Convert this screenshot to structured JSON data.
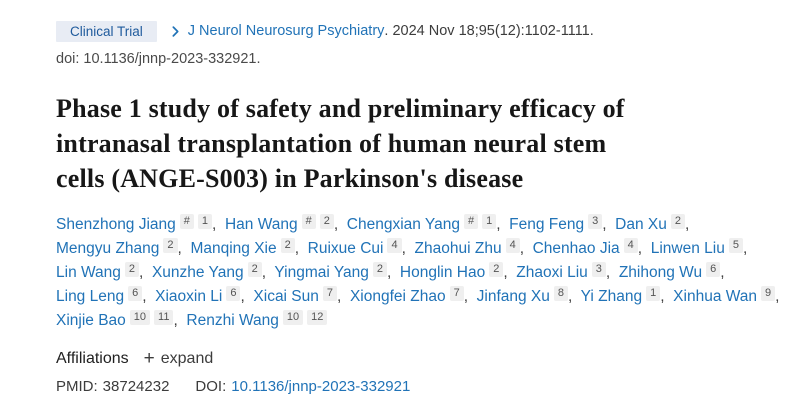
{
  "header": {
    "badge_label": "Clinical Trial",
    "journal_link": "J Neurol Neurosurg Psychiatry",
    "citation_rest": ". 2024 Nov 18;95(12):1102-1111.",
    "doi_line": "doi: 10.1136/jnnp-2023-332921."
  },
  "title_lines": [
    "Phase 1 study of safety and preliminary efficacy of",
    "intranasal transplantation of human neural stem",
    "cells (ANGE-S003) in Parkinson's disease"
  ],
  "title_full": "Phase 1 study of safety and preliminary efficacy of intranasal transplantation of human neural stem cells (ANGE-S003) in Parkinson's disease",
  "authors_lines": [
    [
      {
        "name": "Shenzhong Jiang",
        "sups": [
          "#",
          "1"
        ]
      },
      {
        "name": "Han Wang",
        "sups": [
          "#",
          "2"
        ]
      },
      {
        "name": "Chengxian Yang",
        "sups": [
          "#",
          "1"
        ]
      },
      {
        "name": "Feng Feng",
        "sups": [
          "3"
        ]
      },
      {
        "name": "Dan Xu",
        "sups": [
          "2"
        ]
      }
    ],
    [
      {
        "name": "Mengyu Zhang",
        "sups": [
          "2"
        ]
      },
      {
        "name": "Manqing Xie",
        "sups": [
          "2"
        ]
      },
      {
        "name": "Ruixue Cui",
        "sups": [
          "4"
        ]
      },
      {
        "name": "Zhaohui Zhu",
        "sups": [
          "4"
        ]
      },
      {
        "name": "Chenhao Jia",
        "sups": [
          "4"
        ]
      },
      {
        "name": "Linwen Liu",
        "sups": [
          "5"
        ]
      }
    ],
    [
      {
        "name": "Lin Wang",
        "sups": [
          "2"
        ]
      },
      {
        "name": "Xunzhe Yang",
        "sups": [
          "2"
        ]
      },
      {
        "name": "Yingmai Yang",
        "sups": [
          "2"
        ]
      },
      {
        "name": "Honglin Hao",
        "sups": [
          "2"
        ]
      },
      {
        "name": "Zhaoxi Liu",
        "sups": [
          "3"
        ]
      },
      {
        "name": "Zhihong Wu",
        "sups": [
          "6"
        ]
      }
    ],
    [
      {
        "name": "Ling Leng",
        "sups": [
          "6"
        ]
      },
      {
        "name": "Xiaoxin Li",
        "sups": [
          "6"
        ]
      },
      {
        "name": "Xicai Sun",
        "sups": [
          "7"
        ]
      },
      {
        "name": "Xiongfei Zhao",
        "sups": [
          "7"
        ]
      },
      {
        "name": "Jinfang Xu",
        "sups": [
          "8"
        ]
      },
      {
        "name": "Yi Zhang",
        "sups": [
          "1"
        ]
      },
      {
        "name": "Xinhua Wan",
        "sups": [
          "9"
        ]
      }
    ],
    [
      {
        "name": "Xinjie Bao",
        "sups": [
          "10",
          "11"
        ]
      },
      {
        "name": "Renzhi Wang",
        "sups": [
          "10",
          "12"
        ]
      }
    ]
  ],
  "affiliations": {
    "heading": "Affiliations",
    "plus_glyph": "+",
    "expand_label": "expand"
  },
  "identifiers": {
    "pmid_label": "PMID:",
    "pmid_value": "38724232",
    "doi_label": "DOI:",
    "doi_value": "10.1136/jnnp-2023-332921"
  },
  "colors": {
    "link_blue": "#2173b7",
    "badge_bg": "#e8ecf4",
    "badge_text": "#1e5a9c",
    "sup_badge_bg": "#efefef",
    "sup_badge_text": "#545454",
    "title_text": "#171717",
    "body_gray": "#3c3c3c"
  }
}
